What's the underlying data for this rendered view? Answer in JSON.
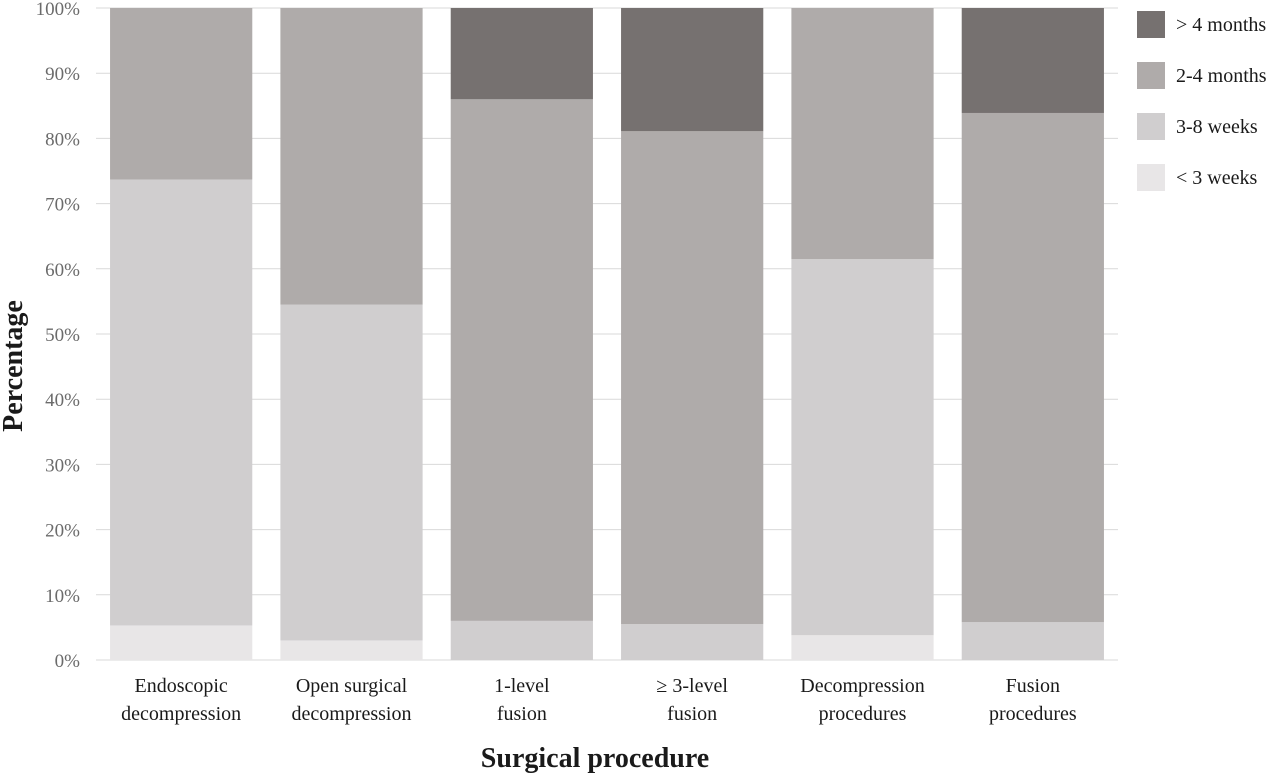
{
  "chart_data": {
    "type": "bar",
    "stacked": true,
    "xlabel": "Surgical procedure",
    "ylabel": "Percentage",
    "ylim": [
      0,
      100
    ],
    "yticks": [
      "0%",
      "10%",
      "20%",
      "30%",
      "40%",
      "50%",
      "60%",
      "70%",
      "80%",
      "90%",
      "100%"
    ],
    "grid": true,
    "legend_position": "right",
    "categories": [
      [
        "Endoscopic",
        "decompression"
      ],
      [
        "Open surgical",
        "decompression"
      ],
      [
        "1-level",
        "fusion"
      ],
      [
        "≥ 3-level",
        "fusion"
      ],
      [
        "Decompression",
        "procedures"
      ],
      [
        "Fusion",
        "procedures"
      ]
    ],
    "series": [
      {
        "name": "< 3 weeks",
        "color": "#e8e6e7",
        "values": [
          5.3,
          3.0,
          0,
          0,
          3.8,
          0
        ]
      },
      {
        "name": "3-8 weeks",
        "color": "#d0cecf",
        "values": [
          68.4,
          51.5,
          6.0,
          5.5,
          57.7,
          5.8
        ]
      },
      {
        "name": "2-4 months",
        "color": "#afabaa",
        "values": [
          26.3,
          45.5,
          80.0,
          75.6,
          38.5,
          78.1
        ]
      },
      {
        "name": "> 4 months",
        "color": "#767170",
        "values": [
          0,
          0,
          14.0,
          18.9,
          0,
          16.1
        ]
      }
    ],
    "legend_order": [
      "> 4 months",
      "2-4 months",
      "3-8 weeks",
      "< 3 weeks"
    ]
  }
}
